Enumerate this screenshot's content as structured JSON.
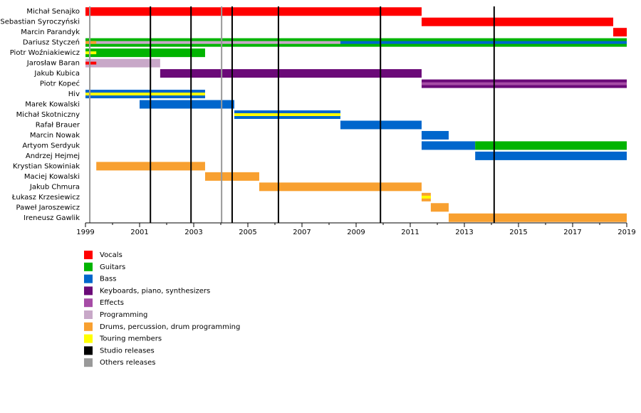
{
  "chart_data": {
    "type": "timeline",
    "xlim": [
      1999,
      2019
    ],
    "xticks": [
      1999,
      2001,
      2003,
      2005,
      2007,
      2009,
      2011,
      2013,
      2015,
      2017,
      2019
    ],
    "legend": [
      {
        "label": "Vocals",
        "color": "#ff0000"
      },
      {
        "label": "Guitars",
        "color": "#00b400"
      },
      {
        "label": "Bass",
        "color": "#0066cc"
      },
      {
        "label": "Keyboards, piano, synthesizers",
        "color": "#6b0a78"
      },
      {
        "label": "Effects",
        "color": "#a64ca6"
      },
      {
        "label": "Programming",
        "color": "#c8a8c8"
      },
      {
        "label": "Drums, percussion, drum programming",
        "color": "#f8a030"
      },
      {
        "label": "Touring members",
        "color": "#ffff00"
      },
      {
        "label": "Studio releases",
        "color": "#000000"
      },
      {
        "label": "Others releases",
        "color": "#999999"
      }
    ],
    "studio_releases": [
      2001.4,
      2002.9,
      2004.42,
      2006.13,
      2009.9,
      2014.1
    ],
    "other_releases": [
      1999.16,
      2004.03
    ],
    "members": [
      {
        "name": "Michał Senajko",
        "bars": [
          {
            "role": 0,
            "start": 1999,
            "end": 2011.42
          }
        ]
      },
      {
        "name": "Sebastian Syroczyński",
        "bars": [
          {
            "role": 0,
            "start": 2011.42,
            "end": 2018.5
          }
        ]
      },
      {
        "name": "Marcin Parandyk",
        "bars": [
          {
            "role": 0,
            "start": 2018.5,
            "end": 2019
          }
        ]
      },
      {
        "name": "Dariusz Styczeń",
        "bars": [
          {
            "role": 1,
            "start": 1999,
            "end": 2019
          },
          {
            "role": 5,
            "start": 1999,
            "end": 2008.42,
            "stripe": true
          },
          {
            "role": 2,
            "start": 2008.42,
            "end": 2019,
            "stripe": true
          },
          {
            "role": 6,
            "start": 1999,
            "end": 1999.4,
            "stripe": true
          }
        ]
      },
      {
        "name": "Piotr Woźniakiewicz",
        "bars": [
          {
            "role": 1,
            "start": 1999,
            "end": 2003.42
          },
          {
            "role": 7,
            "start": 1999,
            "end": 1999.4,
            "stripe": true
          }
        ]
      },
      {
        "name": "Jarosław Baran",
        "bars": [
          {
            "role": 5,
            "start": 1999,
            "end": 2001.76
          },
          {
            "role": 0,
            "start": 1999,
            "end": 1999.4,
            "stripe": true
          }
        ]
      },
      {
        "name": "Jakub Kubica",
        "bars": [
          {
            "role": 3,
            "start": 2001.76,
            "end": 2011.42
          }
        ]
      },
      {
        "name": "Piotr Kopeć",
        "bars": [
          {
            "role": 3,
            "start": 2011.42,
            "end": 2019
          },
          {
            "role": 4,
            "start": 2011.42,
            "end": 2019,
            "stripe": true
          }
        ]
      },
      {
        "name": "Hiv",
        "bars": [
          {
            "role": 2,
            "start": 1999,
            "end": 2003.42
          },
          {
            "role": 7,
            "start": 1999,
            "end": 2003.42,
            "stripe": true
          }
        ]
      },
      {
        "name": "Marek Kowalski",
        "bars": [
          {
            "role": 2,
            "start": 2001,
            "end": 2004.5
          }
        ]
      },
      {
        "name": "Michał Skotniczny",
        "bars": [
          {
            "role": 2,
            "start": 2004.5,
            "end": 2008.42
          },
          {
            "role": 7,
            "start": 2004.5,
            "end": 2008.42,
            "stripe": true
          }
        ]
      },
      {
        "name": "Rafał Brauer",
        "bars": [
          {
            "role": 2,
            "start": 2008.42,
            "end": 2011.42
          }
        ]
      },
      {
        "name": "Marcin Nowak",
        "bars": [
          {
            "role": 2,
            "start": 2011.42,
            "end": 2012.42
          }
        ]
      },
      {
        "name": "Artyom Serdyuk",
        "bars": [
          {
            "role": 2,
            "start": 2011.42,
            "end": 2013.4
          },
          {
            "role": 1,
            "start": 2013.4,
            "end": 2019
          }
        ]
      },
      {
        "name": "Andrzej Hejmej",
        "bars": [
          {
            "role": 2,
            "start": 2013.4,
            "end": 2019
          }
        ]
      },
      {
        "name": "Krystian Skowiniak",
        "bars": [
          {
            "role": 6,
            "start": 1999.4,
            "end": 2003.42
          }
        ]
      },
      {
        "name": "Maciej Kowalski",
        "bars": [
          {
            "role": 6,
            "start": 2003.42,
            "end": 2005.42
          }
        ]
      },
      {
        "name": "Jakub Chmura",
        "bars": [
          {
            "role": 6,
            "start": 2005.42,
            "end": 2011.42
          }
        ]
      },
      {
        "name": "Łukasz Krzesiewicz",
        "bars": [
          {
            "role": 6,
            "start": 2011.42,
            "end": 2011.76
          },
          {
            "role": 7,
            "start": 2011.42,
            "end": 2011.76,
            "stripe": true
          }
        ]
      },
      {
        "name": "Paweł Jaroszewicz",
        "bars": [
          {
            "role": 6,
            "start": 2011.76,
            "end": 2012.42
          }
        ]
      },
      {
        "name": "Ireneusz Gawlik",
        "bars": [
          {
            "role": 6,
            "start": 2012.42,
            "end": 2019
          }
        ]
      }
    ]
  }
}
